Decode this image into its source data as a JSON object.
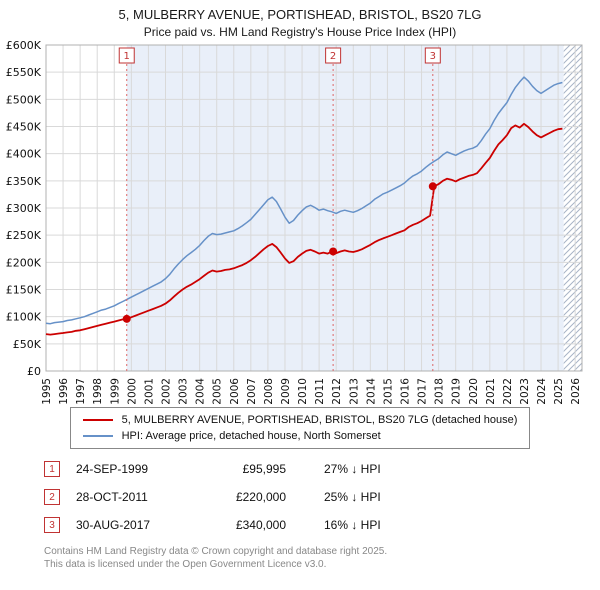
{
  "title": "5, MULBERRY AVENUE, PORTISHEAD, BRISTOL, BS20 7LG",
  "subtitle": "Price paid vs. HM Land Registry's House Price Index (HPI)",
  "chart_data": {
    "type": "line",
    "title": "Price paid vs. HM Land Registry's House Price Index (HPI)",
    "y_unit": "GBP thousands",
    "ylim": [
      0,
      600
    ],
    "yticks": [
      0,
      50,
      100,
      150,
      200,
      250,
      300,
      350,
      400,
      450,
      500,
      550,
      600
    ],
    "ytick_labels": [
      "£0",
      "£50K",
      "£100K",
      "£150K",
      "£200K",
      "£250K",
      "£300K",
      "£350K",
      "£400K",
      "£450K",
      "£500K",
      "£550K",
      "£600K"
    ],
    "xlim": [
      1995,
      2026.4
    ],
    "xticks": [
      1995,
      1996,
      1997,
      1998,
      1999,
      2000,
      2001,
      2002,
      2003,
      2004,
      2005,
      2006,
      2007,
      2008,
      2009,
      2010,
      2011,
      2012,
      2013,
      2014,
      2015,
      2016,
      2017,
      2018,
      2019,
      2020,
      2021,
      2022,
      2023,
      2024,
      2025,
      2026
    ],
    "x_start": 1995,
    "x_step": 0.25,
    "grid": true,
    "legend_position": "bottom",
    "series": [
      {
        "name": "5, MULBERRY AVENUE, PORTISHEAD, BRISTOL, BS20 7LG (detached house)",
        "color": "#cc0000",
        "width": 1.8,
        "values": [
          68,
          67,
          68,
          69,
          70,
          71,
          72,
          74,
          75,
          77,
          79,
          81,
          83,
          85,
          87,
          89,
          91,
          93,
          95,
          96,
          99,
          102,
          105,
          108,
          111,
          114,
          117,
          120,
          124,
          130,
          137,
          144,
          150,
          155,
          159,
          164,
          169,
          175,
          181,
          185,
          183,
          184,
          186,
          187,
          189,
          192,
          195,
          199,
          204,
          210,
          217,
          224,
          230,
          234,
          228,
          218,
          207,
          199,
          202,
          210,
          216,
          221,
          223,
          220,
          216,
          218,
          216,
          220,
          217,
          220,
          222,
          220,
          219,
          221,
          224,
          228,
          232,
          237,
          241,
          244,
          247,
          250,
          253,
          256,
          259,
          265,
          269,
          272,
          276,
          281,
          286,
          340,
          344,
          350,
          354,
          352,
          349,
          353,
          356,
          359,
          361,
          364,
          373,
          383,
          392,
          405,
          417,
          425,
          434,
          447,
          452,
          448,
          455,
          449,
          441,
          434,
          430,
          434,
          438,
          442,
          445,
          446
        ]
      },
      {
        "name": "HPI: Average price, detached house, North Somerset",
        "color": "#6691c8",
        "width": 1.5,
        "values": [
          88,
          87,
          89,
          90,
          91,
          93,
          94,
          96,
          98,
          100,
          103,
          106,
          109,
          112,
          114,
          117,
          120,
          124,
          128,
          132,
          136,
          140,
          144,
          148,
          152,
          156,
          160,
          164,
          170,
          178,
          188,
          197,
          205,
          212,
          218,
          224,
          231,
          240,
          248,
          253,
          251,
          252,
          254,
          256,
          258,
          262,
          267,
          273,
          279,
          288,
          297,
          306,
          315,
          320,
          312,
          298,
          283,
          272,
          277,
          287,
          295,
          302,
          305,
          301,
          296,
          298,
          295,
          293,
          290,
          294,
          296,
          294,
          292,
          295,
          299,
          304,
          309,
          316,
          321,
          326,
          329,
          333,
          337,
          341,
          346,
          353,
          359,
          363,
          368,
          375,
          381,
          386,
          391,
          398,
          403,
          400,
          397,
          401,
          405,
          408,
          410,
          414,
          424,
          436,
          446,
          461,
          474,
          484,
          494,
          509,
          522,
          532,
          541,
          534,
          524,
          516,
          511,
          516,
          521,
          526,
          529,
          531
        ]
      }
    ],
    "markers": [
      {
        "label": "1",
        "x": 1999.73,
        "y": 95.995,
        "date": "24-SEP-1999",
        "price": "£95,995",
        "hpi_diff": "27% ↓ HPI"
      },
      {
        "label": "2",
        "x": 2011.82,
        "y": 220,
        "date": "28-OCT-2011",
        "price": "£220,000",
        "hpi_diff": "25% ↓ HPI"
      },
      {
        "label": "3",
        "x": 2017.66,
        "y": 340,
        "date": "30-AUG-2017",
        "price": "£340,000",
        "hpi_diff": "16% ↓ HPI"
      }
    ],
    "shaded_region": [
      1999.73,
      2025.33
    ],
    "hatched_region": [
      2025.33,
      2026.4
    ],
    "colors": {
      "shade": "#e9eff9",
      "grid": "#d9d9d9",
      "dashed": "#dd6666",
      "border": "#b0b0b0",
      "marker": "#cc0000",
      "number_box": "#c03333"
    }
  },
  "legend": {
    "items": [
      {
        "label": "5, MULBERRY AVENUE, PORTISHEAD, BRISTOL, BS20 7LG (detached house)",
        "color": "#cc0000"
      },
      {
        "label": "HPI: Average price, detached house, North Somerset",
        "color": "#6691c8"
      }
    ]
  },
  "transactions": [
    {
      "num": "1",
      "date": "24-SEP-1999",
      "price": "£95,995",
      "hpi_diff": "27% ↓ HPI"
    },
    {
      "num": "2",
      "date": "28-OCT-2011",
      "price": "£220,000",
      "hpi_diff": "25% ↓ HPI"
    },
    {
      "num": "3",
      "date": "30-AUG-2017",
      "price": "£340,000",
      "hpi_diff": "16% ↓ HPI"
    }
  ],
  "footer": {
    "line1": "Contains HM Land Registry data © Crown copyright and database right 2025.",
    "line2": "This data is licensed under the Open Government Licence v3.0."
  }
}
